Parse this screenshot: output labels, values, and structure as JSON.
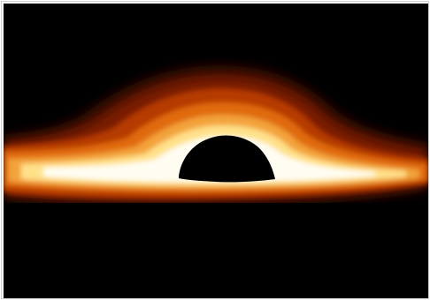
{
  "image": {
    "subject": "black-hole-accretion-disk-rendering",
    "colors": {
      "background": "#000000",
      "outer_glow": "#3b0a00",
      "deep_red": "#7a1d00",
      "red": "#b53a00",
      "orange": "#e06a10",
      "amber": "#f3a33a",
      "yellow": "#ffe18a",
      "hot_white": "#fffdf2",
      "shadow": "#000000"
    }
  }
}
